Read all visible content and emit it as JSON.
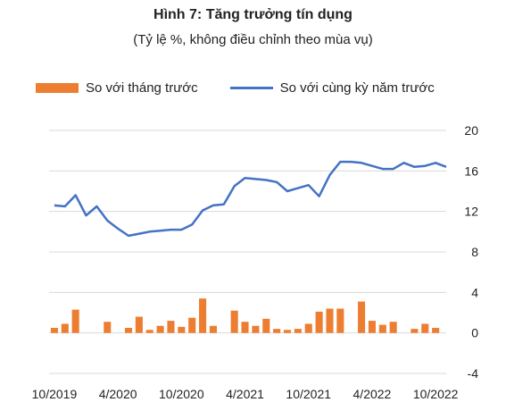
{
  "header": {
    "title": "Hình 7: Tăng trưởng tín dụng",
    "subtitle": "(Tỷ lệ %, không điều chỉnh theo mùa vụ)"
  },
  "chart_data": {
    "type": "bar+line",
    "title": "Hình 7: Tăng trưởng tín dụng",
    "subtitle": "(Tỷ lệ %, không điều chỉnh theo mùa vụ)",
    "legend_position": "top",
    "ylim": [
      -4,
      20
    ],
    "yticks": [
      20,
      16,
      12,
      8,
      4,
      0,
      -4
    ],
    "grid": "horizontal",
    "x_tick_labels": [
      "10/2019",
      "4/2020",
      "10/2020",
      "4/2021",
      "10/2021",
      "4/2022",
      "10/2022"
    ],
    "x_tick_index": [
      0,
      6,
      12,
      18,
      24,
      30,
      36
    ],
    "x": [
      "10/2019",
      "11/2019",
      "12/2019",
      "1/2020",
      "2/2020",
      "3/2020",
      "4/2020",
      "5/2020",
      "6/2020",
      "7/2020",
      "8/2020",
      "9/2020",
      "10/2020",
      "11/2020",
      "12/2020",
      "1/2021",
      "2/2021",
      "3/2021",
      "4/2021",
      "5/2021",
      "6/2021",
      "7/2021",
      "8/2021",
      "9/2021",
      "10/2021",
      "11/2021",
      "12/2021",
      "1/2022",
      "2/2022",
      "3/2022",
      "4/2022",
      "5/2022",
      "6/2022",
      "7/2022",
      "8/2022",
      "9/2022",
      "10/2022",
      "11/2022"
    ],
    "series": [
      {
        "name": "So với tháng trước",
        "kind": "bar",
        "color": "#ED7D31",
        "values": [
          0.5,
          0.9,
          2.3,
          0.0,
          0.0,
          1.1,
          0.0,
          0.5,
          1.6,
          0.3,
          0.7,
          1.2,
          0.6,
          1.5,
          3.4,
          0.7,
          0.0,
          2.2,
          1.1,
          0.7,
          1.4,
          0.4,
          0.3,
          0.4,
          0.9,
          2.1,
          2.4,
          2.4,
          0.0,
          3.1,
          1.2,
          0.8,
          1.1,
          0.0,
          0.4,
          0.9,
          0.5,
          0.0
        ]
      },
      {
        "name": "So với cùng kỳ năm trước",
        "kind": "line",
        "color": "#4472C4",
        "values": [
          12.6,
          12.5,
          13.6,
          11.6,
          12.5,
          11.1,
          10.3,
          9.6,
          9.8,
          10.0,
          10.1,
          10.2,
          10.2,
          10.7,
          12.1,
          12.6,
          12.7,
          14.5,
          15.3,
          15.2,
          15.1,
          14.9,
          14.0,
          14.3,
          14.6,
          13.5,
          15.6,
          16.9,
          16.9,
          16.8,
          16.5,
          16.2,
          16.2,
          16.8,
          16.4,
          16.5,
          16.8,
          16.4
        ]
      }
    ]
  }
}
